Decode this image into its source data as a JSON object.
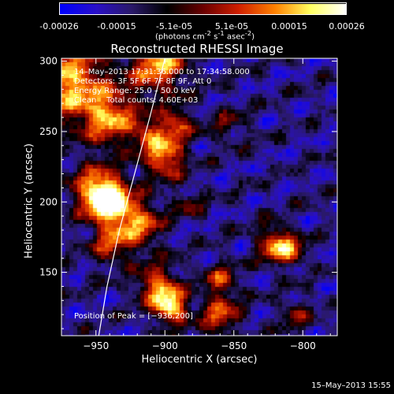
{
  "colorbar": {
    "ticks": [
      "-0.00026",
      "-0.00015",
      "-5.1e-05",
      "5.1e-05",
      "0.00015",
      "0.00026"
    ],
    "units_pre": "(photons cm",
    "units_exp1": "-2",
    "units_mid": " s",
    "units_exp2": "-1",
    "units_post": " asec",
    "units_exp3": "-2",
    "units_close": ")",
    "stops": [
      "#0000ff",
      "#2a10c8",
      "#2b1a6a",
      "#000000",
      "#6a0000",
      "#d02000",
      "#ff8000",
      "#ffff60",
      "#ffffff"
    ]
  },
  "chart_data": {
    "type": "heatmap",
    "title": "Reconstructed RHESSI Image",
    "xlabel": "Heliocentric X (arcsec)",
    "ylabel": "Heliocentric Y (arcsec)",
    "xlim": [
      -975,
      -775
    ],
    "ylim": [
      105,
      302
    ],
    "xticks": [
      -950,
      -900,
      -850,
      -800
    ],
    "xtick_labels": [
      "−950",
      "−900",
      "−850",
      "−800"
    ],
    "yticks": [
      150,
      200,
      250,
      300
    ],
    "ytick_labels": [
      "150",
      "200",
      "250",
      "300"
    ],
    "peak": [
      -936,
      200
    ],
    "limb_curve": [
      [
        -948,
        105
      ],
      [
        -942,
        140
      ],
      [
        -933,
        180
      ],
      [
        -922,
        220
      ],
      [
        -911,
        260
      ],
      [
        -900,
        302
      ]
    ],
    "sources": [
      {
        "x": -970,
        "y": 285,
        "amp": 0.85,
        "w": 18
      },
      {
        "x": -940,
        "y": 260,
        "amp": 0.75,
        "w": 14
      },
      {
        "x": -905,
        "y": 298,
        "amp": 0.8,
        "w": 14
      },
      {
        "x": -940,
        "y": 200,
        "amp": 1.0,
        "w": 10
      },
      {
        "x": -950,
        "y": 208,
        "amp": 0.75,
        "w": 12
      },
      {
        "x": -920,
        "y": 185,
        "amp": 0.7,
        "w": 12
      },
      {
        "x": -900,
        "y": 232,
        "amp": 0.8,
        "w": 10
      },
      {
        "x": -892,
        "y": 255,
        "amp": 0.6,
        "w": 8
      },
      {
        "x": -912,
        "y": 248,
        "amp": 0.5,
        "w": 8
      },
      {
        "x": -940,
        "y": 170,
        "amp": 0.5,
        "w": 10
      },
      {
        "x": -905,
        "y": 140,
        "amp": 0.75,
        "w": 10
      },
      {
        "x": -895,
        "y": 125,
        "amp": 0.9,
        "w": 8
      },
      {
        "x": -860,
        "y": 145,
        "amp": 0.5,
        "w": 8
      },
      {
        "x": -860,
        "y": 120,
        "amp": 0.6,
        "w": 10
      },
      {
        "x": -820,
        "y": 170,
        "amp": 0.7,
        "w": 9
      },
      {
        "x": -808,
        "y": 165,
        "amp": 0.5,
        "w": 7
      },
      {
        "x": -882,
        "y": 198,
        "amp": 0.3,
        "w": 7
      },
      {
        "x": -805,
        "y": 120,
        "amp": 0.35,
        "w": 8
      },
      {
        "x": -855,
        "y": 255,
        "amp": 0.25,
        "w": 10
      }
    ]
  },
  "info": {
    "time": "14–May–2013 17:31:36.000 to 17:34:58.000",
    "detectors": "Detectors: 3F 5F 6F 7F 8F 9F, Att 0",
    "energy": "Energy Range: 25.0 – 50.0 keV",
    "clean_label": "Clean",
    "counts": "Total counts: 4.60E+03",
    "peak": "Position of Peak = [−936,200]"
  },
  "footer": {
    "stamp": "15–May–2013 15:55"
  }
}
